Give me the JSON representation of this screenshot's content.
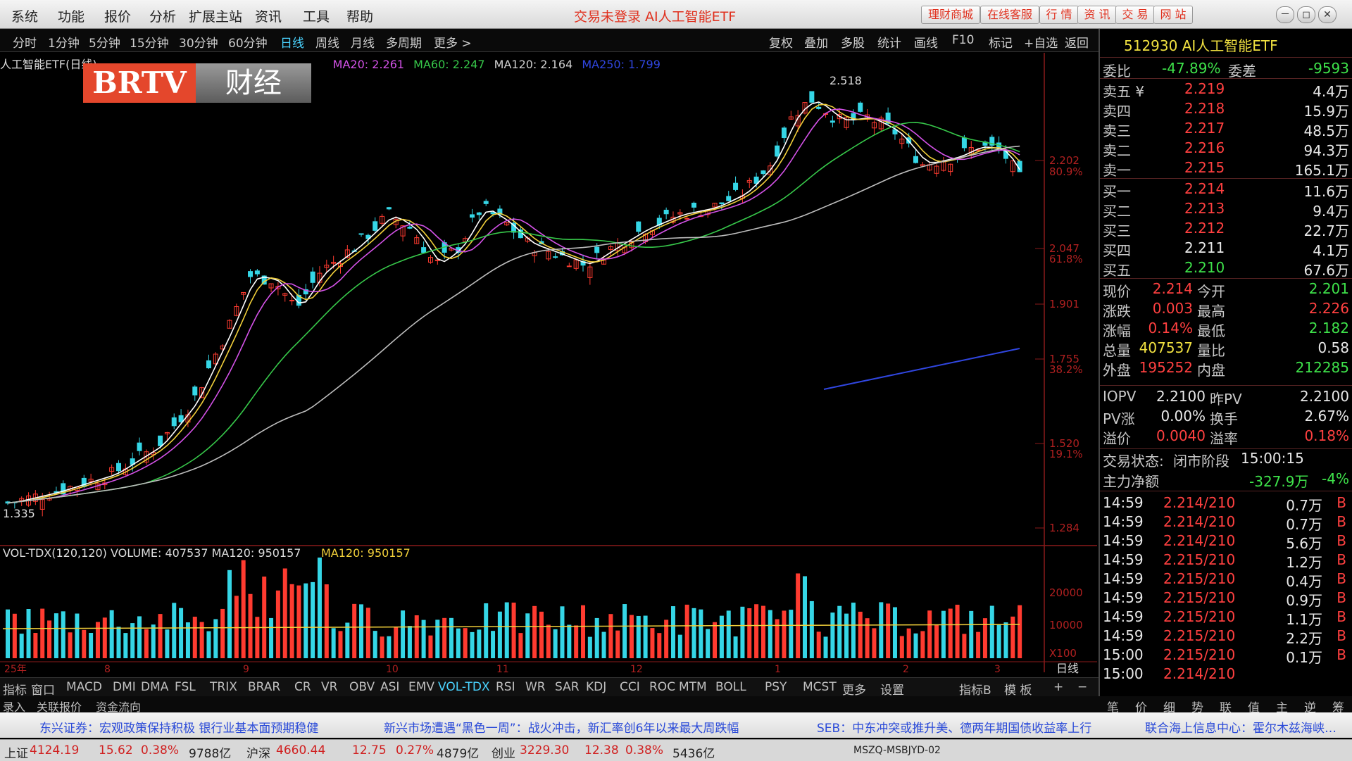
{
  "menu": [
    "系统",
    "功能",
    "报价",
    "分析",
    "扩展主站",
    "资讯",
    "工具",
    "帮助"
  ],
  "window_title": "交易未登录  AI人工智能ETF",
  "quick_buttons": [
    "理财商城",
    "在线客服",
    "行 情",
    "资 讯",
    "交 易",
    "网 站"
  ],
  "window_buttons": [
    "－",
    "◻",
    "✕"
  ],
  "periods": [
    "分时",
    "1分钟",
    "5分钟",
    "15分钟",
    "30分钟",
    "60分钟",
    "日线",
    "周线",
    "月线",
    "多周期",
    "更多 >"
  ],
  "active_period": "日线",
  "tools": [
    "复权",
    "叠加",
    "多股",
    "统计",
    "画线",
    "F10",
    "标记",
    "+自选",
    "返回"
  ],
  "chart": {
    "security_label": "人工智能ETF(日线)",
    "ma20": "MA20: 2.261",
    "ma60": "MA60: 2.247",
    "ma120": "MA120: 2.164",
    "ma250": "MA250: 1.799",
    "high_label": "2.518",
    "low_label": "1.335",
    "price_scale": [
      "2.202",
      "2.047",
      "1.901",
      "1.755",
      "1.520",
      "1.284"
    ],
    "pct_scale": [
      "80.9%",
      "61.8%",
      "38.2%",
      "19.1%"
    ],
    "volume_header": "VOL-TDX(120,120) VOLUME: 407537  MA120: 950157",
    "volume_ma_label": "MA120: 950157",
    "volume_scale": [
      "20000",
      "10000",
      "X100"
    ],
    "period_label": "日线",
    "x_labels": [
      "25年",
      "8",
      "9",
      "10",
      "11",
      "12",
      "1",
      "2",
      "3"
    ]
  },
  "logo": {
    "brand": "BRTV",
    "channel": "财经"
  },
  "quote": {
    "code_name": "512930 AI人工智能ETF",
    "weibi_label": "委比",
    "weibi": "-47.89%",
    "weicha_label": "委差",
    "weicha": "-9593",
    "asks": [
      {
        "label": "卖五 ¥",
        "price": "2.219",
        "vol": "4.4万"
      },
      {
        "label": "卖四",
        "price": "2.218",
        "vol": "15.9万"
      },
      {
        "label": "卖三",
        "price": "2.217",
        "vol": "48.5万"
      },
      {
        "label": "卖二",
        "price": "2.216",
        "vol": "94.3万"
      },
      {
        "label": "卖一",
        "price": "2.215",
        "vol": "165.1万"
      }
    ],
    "bids": [
      {
        "label": "买一",
        "price": "2.214",
        "vol": "11.6万"
      },
      {
        "label": "买二",
        "price": "2.213",
        "vol": "9.4万"
      },
      {
        "label": "买三",
        "price": "2.212",
        "vol": "22.7万"
      },
      {
        "label": "买四",
        "price": "2.211",
        "vol": "4.1万"
      },
      {
        "label": "买五",
        "price": "2.210",
        "vol": "67.6万"
      }
    ],
    "stats": [
      {
        "l1": "现价",
        "v1": "2.214",
        "l2": "今开",
        "v2": "2.201"
      },
      {
        "l1": "涨跌",
        "v1": "0.003",
        "l2": "最高",
        "v2": "2.226"
      },
      {
        "l1": "涨幅",
        "v1": "0.14%",
        "l2": "最低",
        "v2": "2.182"
      },
      {
        "l1": "总量",
        "v1": "407537",
        "l2": "量比",
        "v2": "0.58"
      },
      {
        "l1": "外盘",
        "v1": "195252",
        "l2": "内盘",
        "v2": "212285"
      }
    ],
    "iopv": [
      {
        "l1": "IOPV",
        "v1": "2.2100",
        "l2": "昨PV",
        "v2": "2.2100"
      },
      {
        "l1": "PV涨",
        "v1": "0.00%",
        "l2": "换手",
        "v2": "2.67%"
      },
      {
        "l1": "溢价",
        "v1": "0.0040",
        "l2": "溢率",
        "v2": "0.18%"
      }
    ],
    "trade_status_label": "交易状态:",
    "trade_status": "闭市阶段",
    "trade_time": "15:00:15",
    "main_flow_label": "主力净额",
    "main_flow": "-327.9万",
    "main_flow_pct": "-4%",
    "ticks": [
      {
        "time": "14:59",
        "price": "2.214/210",
        "vol": "0.7万",
        "side": "B"
      },
      {
        "time": "14:59",
        "price": "2.214/210",
        "vol": "0.7万",
        "side": "B"
      },
      {
        "time": "14:59",
        "price": "2.214/210",
        "vol": "5.6万",
        "side": "B"
      },
      {
        "time": "14:59",
        "price": "2.215/210",
        "vol": "1.2万",
        "side": "B"
      },
      {
        "time": "14:59",
        "price": "2.215/210",
        "vol": "0.4万",
        "side": "B"
      },
      {
        "time": "14:59",
        "price": "2.215/210",
        "vol": "0.9万",
        "side": "B"
      },
      {
        "time": "14:59",
        "price": "2.215/210",
        "vol": "1.1万",
        "side": "B"
      },
      {
        "time": "14:59",
        "price": "2.215/210",
        "vol": "2.2万",
        "side": "B"
      },
      {
        "time": "15:00",
        "price": "2.215/210",
        "vol": "0.1万",
        "side": "B"
      },
      {
        "time": "15:00",
        "price": "2.214/210",
        "vol": "",
        "side": ""
      }
    ],
    "tabs": [
      "笔",
      "价",
      "细",
      "势",
      "联",
      "值",
      "主",
      "逆",
      "筹"
    ]
  },
  "indicator_tabs": [
    "指标",
    "窗口",
    "MACD",
    "DMI",
    "DMA",
    "FSL",
    "TRIX",
    "BRAR",
    "CR",
    "VR",
    "OBV",
    "ASI",
    "EMV",
    "VOL-TDX",
    "RSI",
    "WR",
    "SAR",
    "KDJ",
    "CCI",
    "ROC",
    "MTM",
    "BOLL",
    "PSY",
    "MCST",
    "更多",
    "设置"
  ],
  "active_indicator": "VOL-TDX",
  "indicator_right": [
    "指标B",
    "模 板",
    "+",
    "−"
  ],
  "sub_tabs": [
    "录入",
    "关联报价",
    "资金流向"
  ],
  "news": [
    "东兴证券：宏观政策保持积极 银行业基本面预期稳健",
    "新兴市场遭遇“黑色一周”：战火冲击，新汇率创6年以来最大周跌幅",
    "SEB：中东冲突或推升美、德两年期国债收益率上行",
    "联合海上信息中心：霍尔木兹海峡…"
  ],
  "status": {
    "sh_label": "上证",
    "sh": "4124.19",
    "sh_chg": "15.62",
    "sh_pct": "0.38%",
    "sh_amt": "9788亿",
    "sz_label": "沪深",
    "sz": "4660.44",
    "sz_chg": "12.75",
    "sz_pct": "0.27%",
    "sz_amt": "4879亿",
    "cy_label": "创业",
    "cy": "3229.30",
    "cy_chg": "12.38",
    "cy_pct": "0.38%",
    "cy_amt": "5436亿",
    "server": "MSZQ-MSBJYD-02"
  },
  "colors": {
    "up": "#ff3b30",
    "down": "#35d6e6",
    "ma5": "#ffffff",
    "ma10": "#f2d03a",
    "ma20": "#d452e8",
    "ma60": "#37c84a",
    "ma120": "#bdbdbd",
    "ma250": "#3046e0"
  }
}
